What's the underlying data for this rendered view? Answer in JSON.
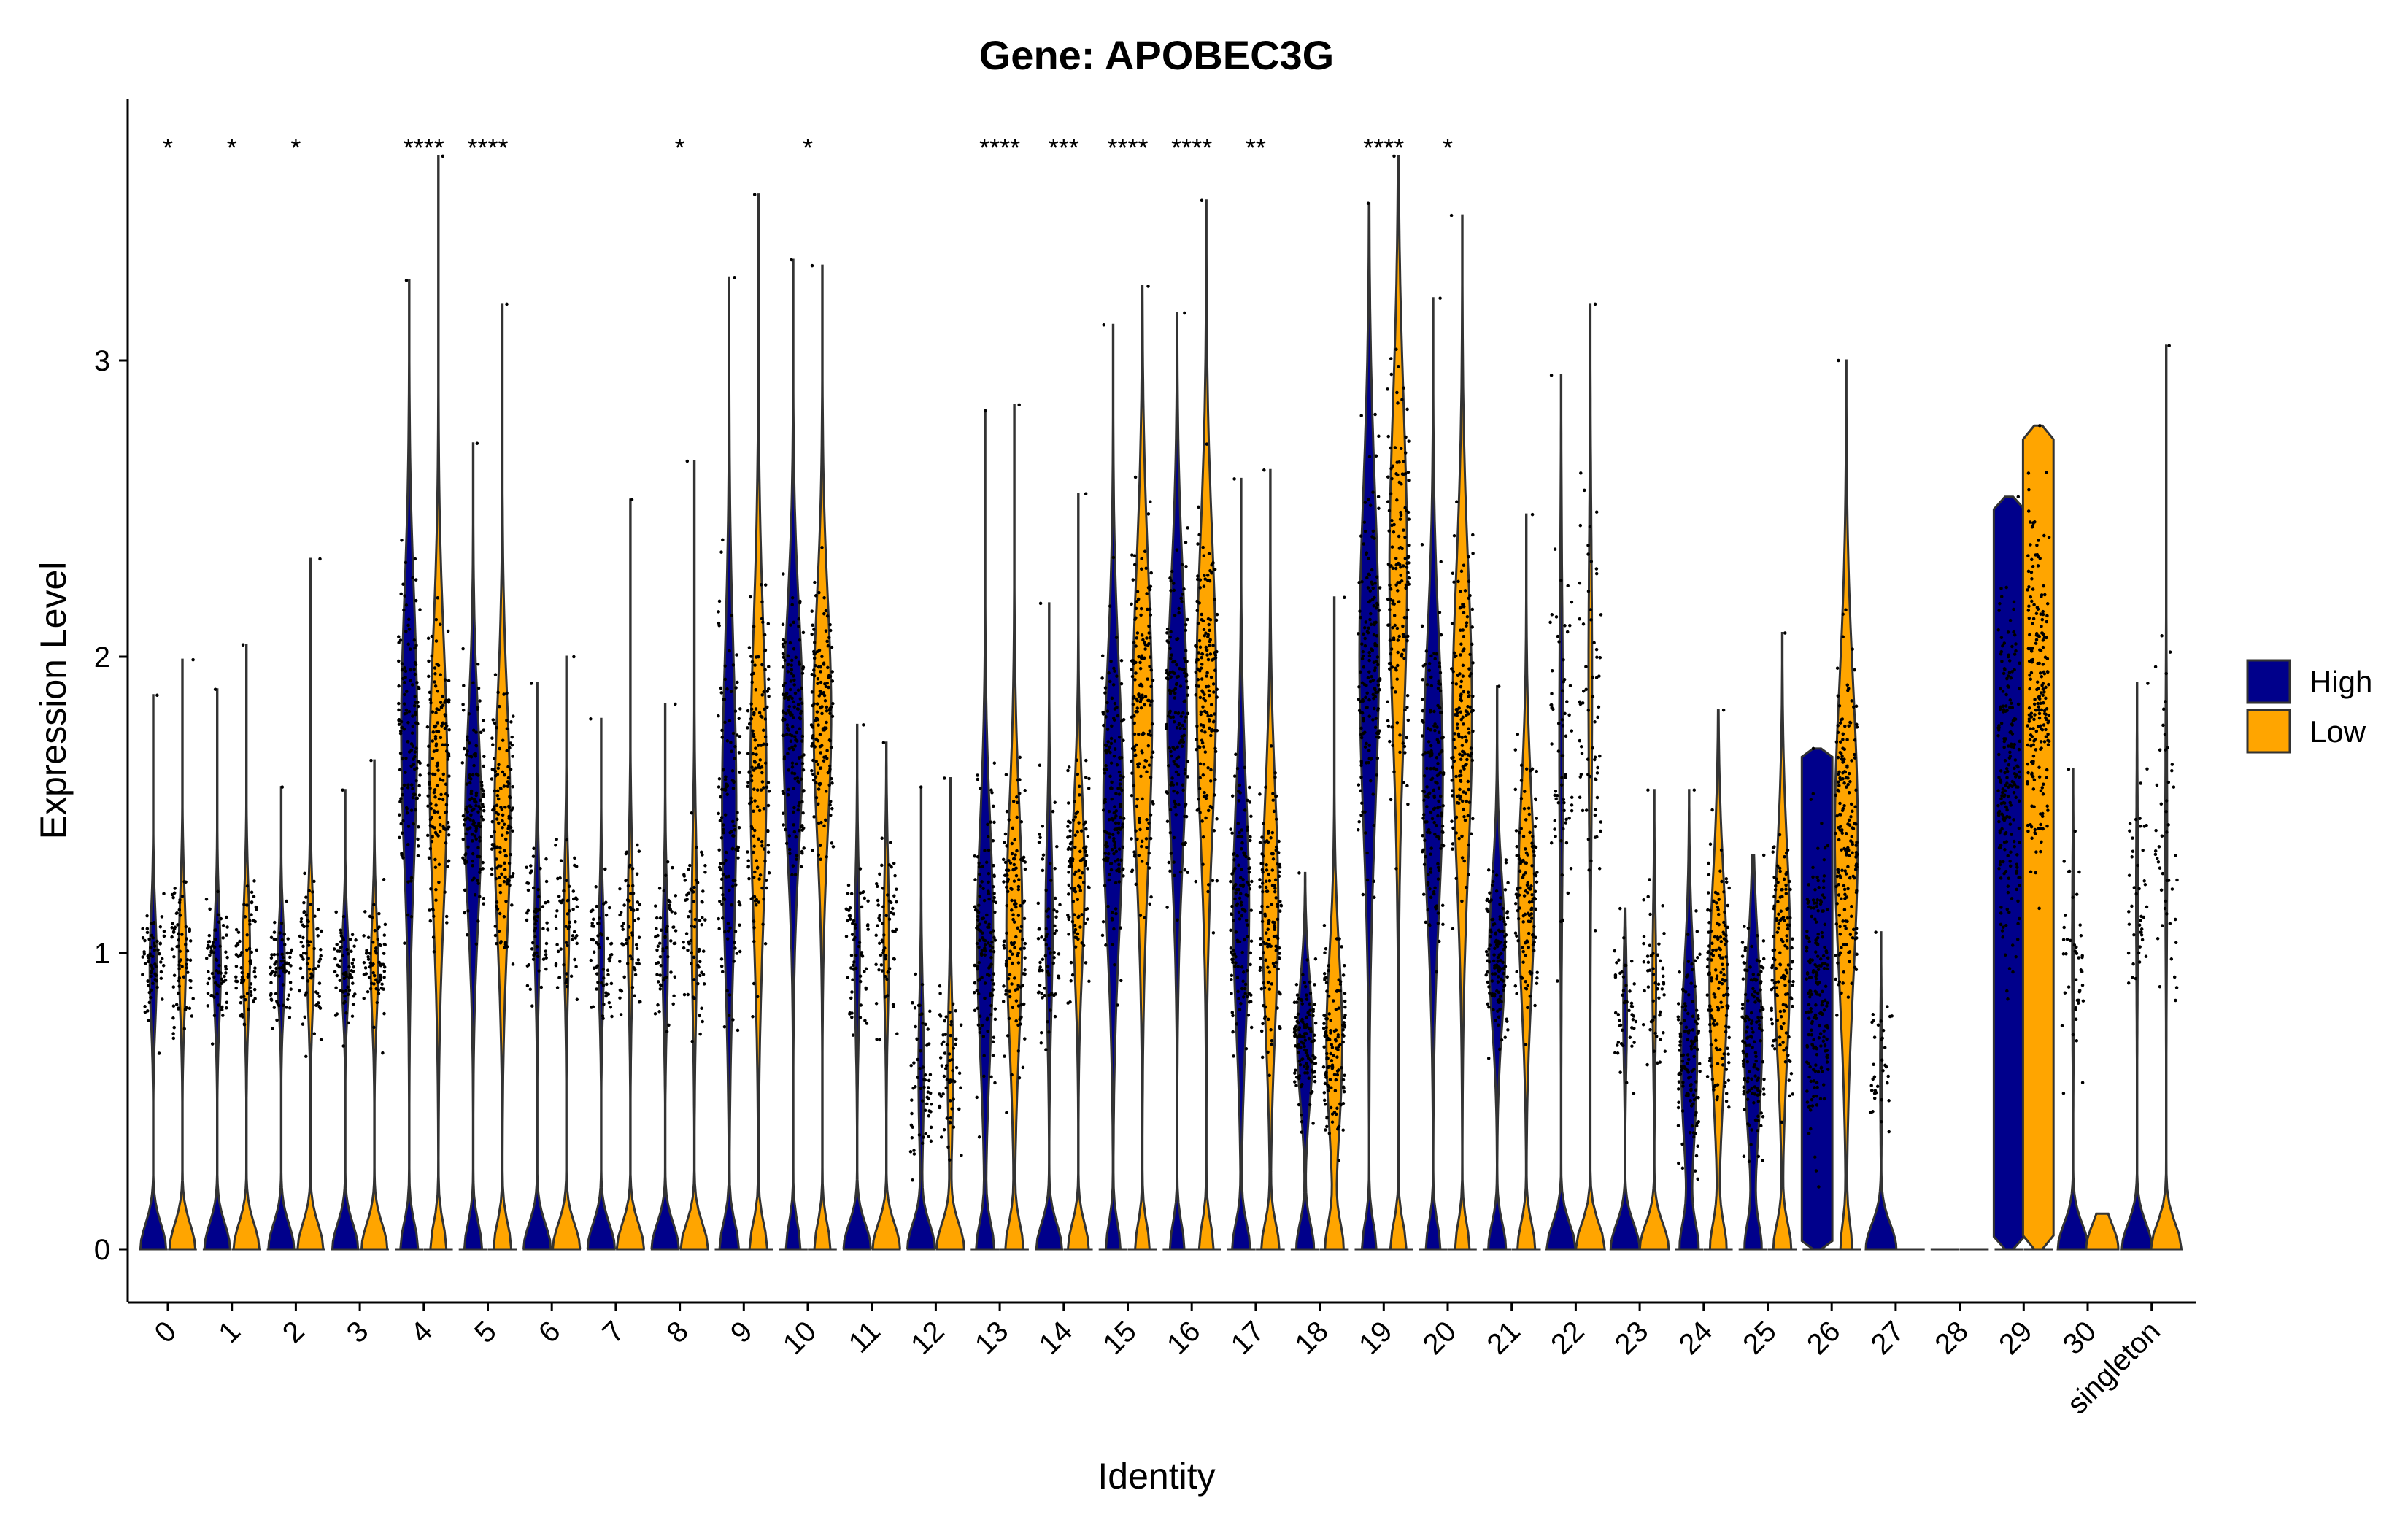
{
  "chart_data": {
    "type": "violin",
    "title": "Gene: APOBEC3G",
    "xlabel": "Identity",
    "ylabel": "Expression Level",
    "ylim": [
      -0.18,
      3.9
    ],
    "yticks": [
      0,
      1,
      2,
      3
    ],
    "grid": false,
    "legend_position": "right",
    "legend": [
      {
        "name": "High",
        "color": "#00008B"
      },
      {
        "name": "Low",
        "color": "#FFA500"
      }
    ],
    "jitter_points": true,
    "categories": [
      "0",
      "1",
      "2",
      "3",
      "4",
      "5",
      "6",
      "7",
      "8",
      "9",
      "10",
      "11",
      "12",
      "13",
      "14",
      "15",
      "16",
      "17",
      "18",
      "19",
      "20",
      "21",
      "22",
      "23",
      "24",
      "25",
      "26",
      "27",
      "28",
      "29",
      "30",
      "singleton"
    ],
    "significance": [
      "*",
      "*",
      "*",
      "",
      "****",
      "****",
      "",
      "",
      "*",
      "",
      "*",
      "",
      "",
      "****",
      "***",
      "****",
      "****",
      "**",
      "",
      "****",
      "*",
      "",
      "",
      "",
      "",
      "",
      "",
      "",
      "",
      "",
      "",
      ""
    ],
    "series": [
      {
        "name": "High",
        "violins": [
          {
            "max": 1.87,
            "mid": 0.95,
            "spread": 0.18,
            "zero": 0.8
          },
          {
            "max": 1.89,
            "mid": 0.95,
            "spread": 0.18,
            "zero": 0.8
          },
          {
            "max": 1.56,
            "mid": 0.95,
            "spread": 0.15,
            "zero": 0.8
          },
          {
            "max": 1.55,
            "mid": 0.95,
            "spread": 0.15,
            "zero": 0.8
          },
          {
            "max": 3.27,
            "mid": 1.75,
            "spread": 0.45,
            "zero": 0.55
          },
          {
            "max": 2.72,
            "mid": 1.45,
            "spread": 0.35,
            "zero": 0.55
          },
          {
            "max": 1.91,
            "mid": 1.1,
            "spread": 0.22,
            "zero": 0.85
          },
          {
            "max": 1.79,
            "mid": 1.0,
            "spread": 0.2,
            "zero": 0.85
          },
          {
            "max": 1.84,
            "mid": 1.0,
            "spread": 0.22,
            "zero": 0.85
          },
          {
            "max": 3.28,
            "mid": 1.5,
            "spread": 0.5,
            "zero": 0.6
          },
          {
            "max": 3.34,
            "mid": 1.75,
            "spread": 0.4,
            "zero": 0.45
          },
          {
            "max": 1.77,
            "mid": 1.0,
            "spread": 0.25,
            "zero": 0.85
          },
          {
            "max": 1.56,
            "mid": 0.6,
            "spread": 0.25,
            "zero": 0.85
          },
          {
            "max": 2.83,
            "mid": 1.05,
            "spread": 0.4,
            "zero": 0.55
          },
          {
            "max": 2.18,
            "mid": 1.1,
            "spread": 0.3,
            "zero": 0.8
          },
          {
            "max": 3.12,
            "mid": 1.5,
            "spread": 0.45,
            "zero": 0.45
          },
          {
            "max": 3.16,
            "mid": 1.8,
            "spread": 0.45,
            "zero": 0.45
          },
          {
            "max": 2.6,
            "mid": 1.15,
            "spread": 0.4,
            "zero": 0.55
          },
          {
            "max": 1.27,
            "mid": 0.7,
            "spread": 0.2,
            "zero": 0.55
          },
          {
            "max": 3.53,
            "mid": 2.0,
            "spread": 0.55,
            "zero": 0.45
          },
          {
            "max": 3.21,
            "mid": 1.6,
            "spread": 0.45,
            "zero": 0.45
          },
          {
            "max": 1.9,
            "mid": 1.0,
            "spread": 0.25,
            "zero": 0.55
          },
          {
            "max": 2.95,
            "mid": 1.7,
            "spread": 0.5,
            "zero": 0.9
          },
          {
            "max": 1.15,
            "mid": 0.8,
            "spread": 0.2,
            "zero": 0.9
          },
          {
            "max": 1.55,
            "mid": 0.65,
            "spread": 0.3,
            "zero": 0.55
          },
          {
            "max": 1.33,
            "mid": 0.7,
            "spread": 0.3,
            "zero": 0.5
          },
          {
            "max": 1.69,
            "mid": 0.9,
            "spread": 0.45,
            "zero": 0.3,
            "block": true
          },
          {
            "max": 1.07,
            "mid": 0.6,
            "spread": 0.2,
            "zero": 0.95
          },
          {
            "max": 0.0,
            "mid": 0.0,
            "spread": 0.0,
            "zero": 1.0
          },
          {
            "max": 2.54,
            "mid": 1.6,
            "spread": 0.5,
            "zero": 0.25,
            "block": true
          },
          {
            "max": 1.62,
            "mid": 1.0,
            "spread": 0.3,
            "zero": 0.95
          },
          {
            "max": 1.91,
            "mid": 1.2,
            "spread": 0.3,
            "zero": 0.95
          }
        ]
      },
      {
        "name": "Low",
        "violins": [
          {
            "max": 1.99,
            "mid": 1.0,
            "spread": 0.2,
            "zero": 0.8
          },
          {
            "max": 2.04,
            "mid": 1.0,
            "spread": 0.2,
            "zero": 0.8
          },
          {
            "max": 2.33,
            "mid": 1.0,
            "spread": 0.2,
            "zero": 0.8
          },
          {
            "max": 1.65,
            "mid": 0.95,
            "spread": 0.18,
            "zero": 0.8
          },
          {
            "max": 3.69,
            "mid": 1.6,
            "spread": 0.45,
            "zero": 0.5
          },
          {
            "max": 3.19,
            "mid": 1.45,
            "spread": 0.4,
            "zero": 0.55
          },
          {
            "max": 2.0,
            "mid": 1.1,
            "spread": 0.22,
            "zero": 0.85
          },
          {
            "max": 2.53,
            "mid": 1.1,
            "spread": 0.25,
            "zero": 0.85
          },
          {
            "max": 2.66,
            "mid": 1.1,
            "spread": 0.3,
            "zero": 0.85
          },
          {
            "max": 3.56,
            "mid": 1.6,
            "spread": 0.5,
            "zero": 0.55
          },
          {
            "max": 3.32,
            "mid": 1.8,
            "spread": 0.4,
            "zero": 0.5
          },
          {
            "max": 1.71,
            "mid": 1.05,
            "spread": 0.25,
            "zero": 0.85
          },
          {
            "max": 1.59,
            "mid": 0.6,
            "spread": 0.25,
            "zero": 0.85
          },
          {
            "max": 2.85,
            "mid": 1.1,
            "spread": 0.4,
            "zero": 0.55
          },
          {
            "max": 2.55,
            "mid": 1.25,
            "spread": 0.3,
            "zero": 0.65
          },
          {
            "max": 3.25,
            "mid": 1.8,
            "spread": 0.5,
            "zero": 0.45
          },
          {
            "max": 3.54,
            "mid": 1.9,
            "spread": 0.5,
            "zero": 0.45
          },
          {
            "max": 2.63,
            "mid": 1.15,
            "spread": 0.4,
            "zero": 0.55
          },
          {
            "max": 2.2,
            "mid": 0.7,
            "spread": 0.3,
            "zero": 0.55
          },
          {
            "max": 3.69,
            "mid": 2.3,
            "spread": 0.55,
            "zero": 0.5
          },
          {
            "max": 3.49,
            "mid": 1.8,
            "spread": 0.5,
            "zero": 0.45
          },
          {
            "max": 2.48,
            "mid": 1.2,
            "spread": 0.35,
            "zero": 0.55
          },
          {
            "max": 3.19,
            "mid": 1.9,
            "spread": 0.5,
            "zero": 0.9
          },
          {
            "max": 1.55,
            "mid": 0.9,
            "spread": 0.25,
            "zero": 0.9
          },
          {
            "max": 1.82,
            "mid": 0.9,
            "spread": 0.35,
            "zero": 0.5
          },
          {
            "max": 2.08,
            "mid": 1.0,
            "spread": 0.35,
            "zero": 0.55
          },
          {
            "max": 3.0,
            "mid": 1.4,
            "spread": 0.5,
            "zero": 0.35
          },
          {
            "max": 0.0,
            "mid": 0.0,
            "spread": 0.0,
            "zero": 1.0
          },
          {
            "max": 0.0,
            "mid": 0.0,
            "spread": 0.0,
            "zero": 1.0
          },
          {
            "max": 2.78,
            "mid": 1.9,
            "spread": 0.5,
            "zero": 0.25,
            "block": true
          },
          {
            "max": 0.12,
            "mid": 0.0,
            "spread": 0.0,
            "zero": 1.0
          },
          {
            "max": 3.05,
            "mid": 1.4,
            "spread": 0.4,
            "zero": 0.95
          }
        ]
      }
    ]
  }
}
